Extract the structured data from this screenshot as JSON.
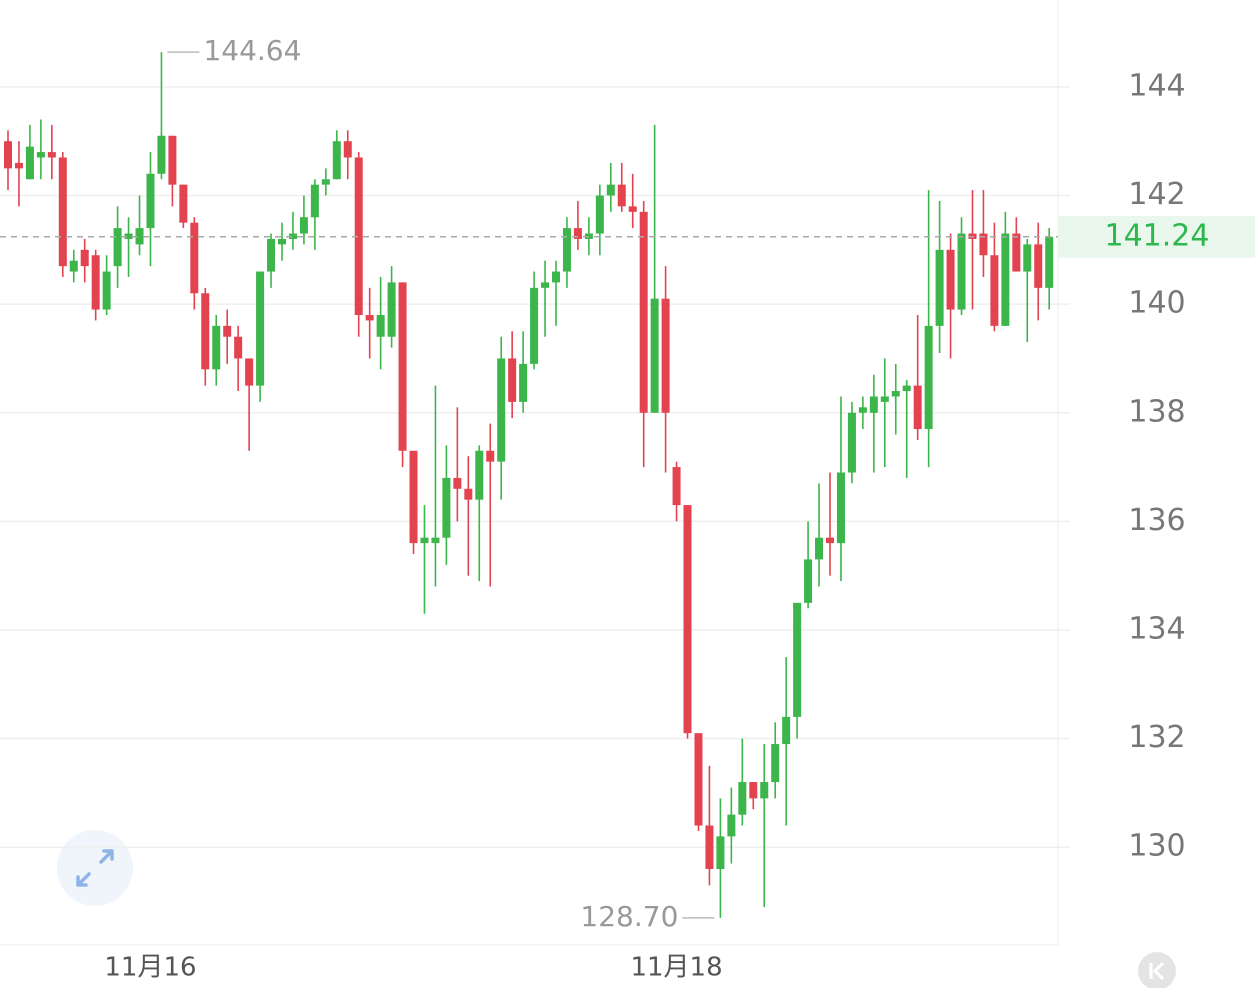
{
  "chart_data": {
    "type": "candlestick",
    "categories": [
      null,
      null,
      null,
      null,
      null,
      null,
      null,
      null,
      null,
      null,
      null,
      null,
      null,
      "11月16",
      null,
      null,
      null,
      null,
      null,
      null,
      null,
      null,
      null,
      null,
      null,
      null,
      null,
      null,
      null,
      null,
      null,
      null,
      null,
      null,
      null,
      null,
      null,
      null,
      null,
      null,
      null,
      null,
      null,
      null,
      null,
      null,
      null,
      null,
      null,
      null,
      null,
      null,
      null,
      null,
      null,
      null,
      null,
      null,
      null,
      null,
      null,
      "11月18",
      null,
      null,
      null,
      null,
      null,
      null,
      null,
      null,
      null,
      null,
      null,
      null,
      null,
      null,
      null,
      null,
      null,
      null,
      null,
      null,
      null,
      null,
      null,
      null,
      null,
      null,
      null,
      null,
      null,
      null,
      null,
      null,
      null,
      null
    ],
    "open": [
      143.0,
      142.6,
      142.3,
      142.7,
      142.8,
      142.7,
      140.6,
      141.0,
      140.9,
      139.9,
      140.7,
      141.2,
      141.1,
      141.4,
      142.4,
      143.1,
      142.2,
      141.5,
      140.2,
      138.8,
      139.6,
      139.4,
      139.0,
      138.5,
      140.6,
      141.1,
      141.2,
      141.3,
      141.6,
      142.2,
      142.3,
      143.0,
      142.7,
      139.8,
      139.4,
      139.4,
      140.4,
      137.3,
      135.6,
      135.6,
      135.7,
      136.8,
      136.6,
      136.4,
      137.3,
      137.1,
      139.0,
      138.2,
      138.9,
      140.3,
      140.4,
      140.6,
      141.4,
      141.2,
      141.3,
      142.0,
      142.2,
      141.8,
      141.7,
      138.0,
      140.1,
      137.0,
      136.3,
      132.1,
      130.4,
      129.6,
      130.2,
      130.6,
      131.2,
      130.9,
      131.2,
      131.9,
      132.4,
      134.5,
      135.3,
      135.7,
      135.6,
      136.9,
      138.0,
      138.0,
      138.2,
      138.3,
      138.4,
      138.5,
      137.7,
      139.6,
      141.0,
      139.9,
      141.3,
      141.3,
      140.9,
      139.6,
      141.3,
      140.6,
      141.1,
      140.3
    ],
    "high": [
      143.2,
      143.0,
      143.3,
      143.4,
      143.3,
      142.8,
      141.0,
      141.2,
      141.0,
      140.9,
      141.8,
      141.6,
      142.0,
      142.8,
      144.64,
      143.1,
      142.2,
      141.6,
      140.3,
      139.8,
      139.9,
      139.6,
      139.0,
      140.6,
      141.3,
      141.5,
      141.7,
      142.0,
      142.3,
      142.5,
      143.2,
      143.2,
      142.8,
      140.3,
      140.5,
      140.7,
      140.4,
      137.3,
      136.3,
      138.5,
      137.4,
      138.1,
      137.2,
      137.4,
      137.8,
      139.4,
      139.5,
      139.5,
      140.6,
      140.8,
      140.8,
      141.6,
      141.9,
      141.6,
      142.2,
      142.6,
      142.6,
      142.4,
      141.9,
      143.3,
      140.7,
      137.1,
      136.3,
      132.1,
      131.5,
      130.9,
      131.1,
      132.0,
      131.2,
      131.9,
      132.3,
      133.5,
      134.5,
      136.0,
      136.7,
      136.9,
      138.3,
      138.2,
      138.3,
      138.7,
      139.0,
      138.9,
      138.6,
      139.8,
      142.1,
      141.9,
      141.3,
      141.6,
      142.1,
      142.1,
      141.5,
      141.7,
      141.6,
      141.2,
      141.5,
      141.4
    ],
    "low": [
      142.1,
      141.8,
      142.3,
      142.3,
      142.3,
      140.5,
      140.4,
      140.4,
      139.7,
      139.8,
      140.3,
      140.5,
      140.9,
      140.7,
      142.3,
      141.8,
      141.4,
      139.9,
      138.5,
      138.5,
      138.9,
      138.4,
      137.3,
      138.2,
      140.3,
      140.8,
      141.0,
      141.1,
      141.0,
      142.0,
      142.3,
      142.3,
      139.4,
      139.0,
      138.8,
      139.2,
      137.0,
      135.4,
      134.3,
      134.8,
      135.2,
      136.0,
      135.0,
      134.9,
      134.8,
      136.4,
      137.9,
      138.0,
      138.8,
      139.4,
      139.6,
      140.3,
      141.0,
      140.9,
      140.9,
      141.7,
      141.7,
      141.4,
      137.0,
      138.0,
      136.9,
      136.0,
      132.0,
      130.3,
      129.3,
      128.7,
      129.7,
      130.4,
      130.7,
      128.9,
      130.9,
      130.4,
      132.0,
      134.4,
      134.8,
      135.0,
      134.9,
      136.7,
      137.7,
      136.9,
      137.0,
      137.6,
      136.8,
      137.5,
      137.0,
      139.1,
      139.0,
      139.8,
      139.9,
      140.5,
      139.5,
      139.6,
      140.6,
      139.3,
      139.7,
      139.9
    ],
    "close": [
      142.5,
      142.5,
      142.9,
      142.8,
      142.7,
      140.7,
      140.8,
      140.7,
      139.9,
      140.6,
      141.4,
      141.3,
      141.4,
      142.4,
      143.1,
      142.2,
      141.5,
      140.2,
      138.8,
      139.6,
      139.4,
      139.0,
      138.5,
      140.6,
      141.2,
      141.2,
      141.3,
      141.6,
      142.2,
      142.3,
      143.0,
      142.7,
      139.8,
      139.7,
      139.8,
      140.4,
      137.3,
      135.6,
      135.7,
      135.7,
      136.8,
      136.6,
      136.4,
      137.3,
      137.1,
      139.0,
      138.2,
      138.9,
      140.3,
      140.4,
      140.6,
      141.4,
      141.2,
      141.3,
      142.0,
      142.2,
      141.8,
      141.7,
      138.0,
      140.1,
      138.0,
      136.3,
      132.1,
      130.4,
      129.6,
      130.2,
      130.6,
      131.2,
      130.9,
      131.2,
      131.9,
      132.4,
      134.5,
      135.3,
      135.7,
      135.6,
      136.9,
      138.0,
      138.1,
      138.3,
      138.3,
      138.4,
      138.5,
      137.7,
      139.6,
      141.0,
      139.9,
      141.3,
      141.2,
      140.9,
      139.6,
      141.3,
      140.6,
      141.1,
      140.3,
      141.24
    ],
    "up_color": "#3cb54a",
    "down_color": "#e2434f",
    "ylim": [
      128.2,
      145.6
    ],
    "yticks": [
      130,
      132,
      134,
      136,
      138,
      140,
      142,
      144
    ],
    "grid": true,
    "max_label": 144.64,
    "min_label": {
      "value": 128.7,
      "label": "128.70"
    },
    "last_price": 141.24
  }
}
